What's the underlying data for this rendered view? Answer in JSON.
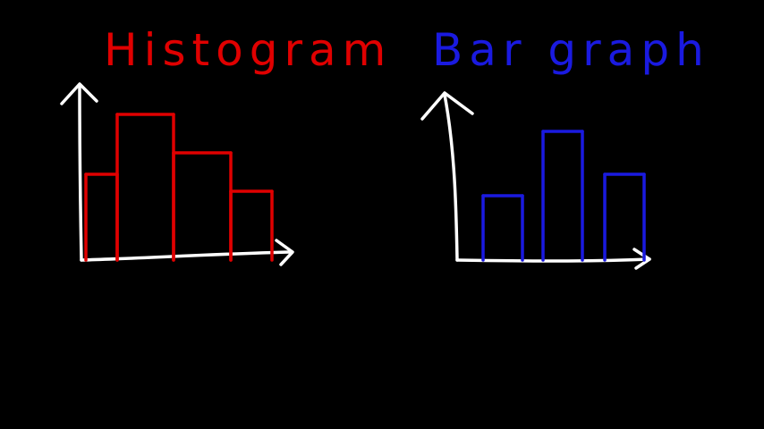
{
  "colors": {
    "background": "#000000",
    "axes": "#ffffff",
    "histogram": "#e00000",
    "bar_graph": "#1a1ae0"
  },
  "histogram": {
    "title": "Histogram"
  },
  "bar_graph": {
    "title": "Bar graph"
  },
  "chart_data": [
    {
      "type": "bar",
      "title": "Histogram",
      "contiguous_bars": true,
      "values": [
        2.0,
        3.4,
        2.5,
        1.6
      ],
      "xlabel": "",
      "ylabel": ""
    },
    {
      "type": "bar",
      "title": "Bar graph",
      "contiguous_bars": false,
      "values": [
        1.5,
        3.0,
        2.0
      ],
      "xlabel": "",
      "ylabel": ""
    }
  ]
}
